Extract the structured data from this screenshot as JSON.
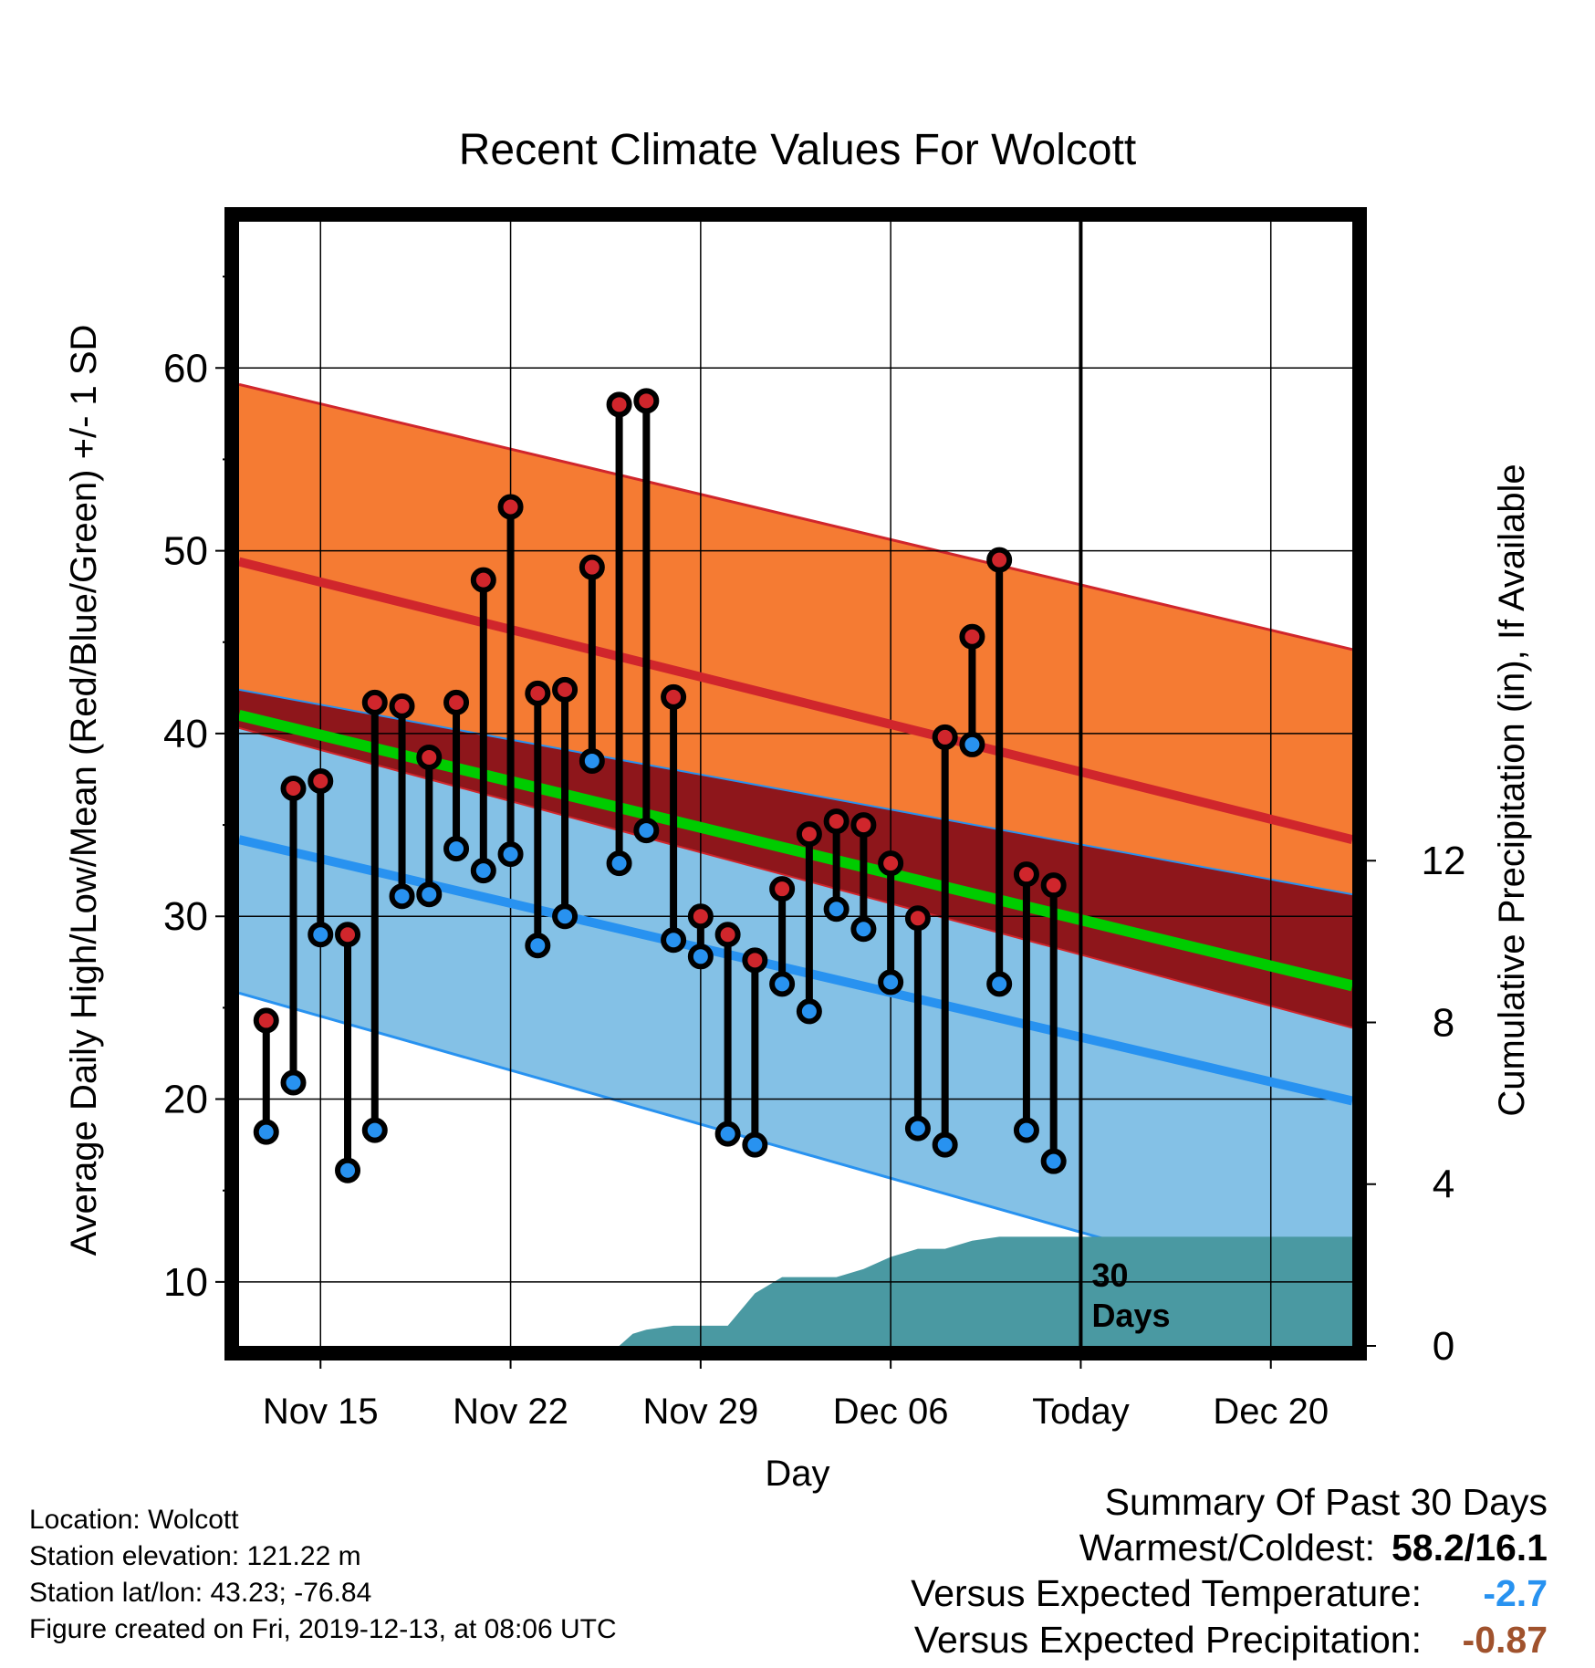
{
  "chart_data": {
    "type": "line",
    "title": "Recent Climate Values For Wolcott",
    "xlabel": "Day",
    "ylabel": "Average Daily High/Low/Mean (Red/Blue/Green) +/- 1 SD",
    "y2label": "Cumulative Precipitation (in), If Available",
    "x_tick_labels": [
      "Nov 15",
      "Nov 22",
      "Nov 29",
      "Dec 06",
      "Today",
      "Dec 20"
    ],
    "x_tick_days": [
      3,
      10,
      17,
      24,
      31,
      38
    ],
    "xlim": [
      0,
      41
    ],
    "ylim": [
      6.5,
      68
    ],
    "y_ticks": [
      10,
      20,
      30,
      40,
      50,
      60
    ],
    "y2lim": [
      0,
      27.8
    ],
    "y2_ticks": [
      0,
      4,
      8,
      12
    ],
    "grid": true,
    "today_day": 31,
    "today_label": "30 Days",
    "normals": {
      "day": [
        0,
        41
      ],
      "high_plus_sd": [
        59.1,
        44.6
      ],
      "high_mean": [
        49.4,
        34.2
      ],
      "high_minus_sd": [
        42.4,
        31.2
      ],
      "mean": [
        41.0,
        26.2
      ],
      "low_plus_sd": [
        40.3,
        23.9
      ],
      "low_mean": [
        34.2,
        19.9
      ],
      "low_minus_sd": [
        25.8,
        8.5
      ]
    },
    "series": [
      {
        "name": "High",
        "color": "#d0262c",
        "day": [
          1,
          2,
          3,
          4,
          5,
          6,
          7,
          8,
          9,
          10,
          11,
          12,
          13,
          14,
          15,
          16,
          17,
          18,
          19,
          20,
          21,
          22,
          23,
          24,
          25,
          26,
          27,
          28,
          29,
          30
        ],
        "values": [
          24.3,
          37.0,
          37.4,
          29.0,
          41.7,
          41.5,
          38.7,
          41.7,
          48.4,
          52.4,
          42.2,
          42.4,
          49.1,
          58.0,
          58.2,
          42.0,
          30.0,
          29.0,
          27.6,
          31.5,
          34.5,
          35.2,
          35.0,
          32.9,
          29.9,
          39.8,
          45.3,
          49.5,
          32.3,
          31.7
        ]
      },
      {
        "name": "Low",
        "color": "#2892f0",
        "day": [
          1,
          2,
          3,
          4,
          5,
          6,
          7,
          8,
          9,
          10,
          11,
          12,
          13,
          14,
          15,
          16,
          17,
          18,
          19,
          20,
          21,
          22,
          23,
          24,
          25,
          26,
          27,
          28,
          29,
          30
        ],
        "values": [
          18.2,
          20.9,
          29.0,
          16.1,
          18.3,
          31.1,
          31.2,
          33.7,
          32.5,
          33.4,
          28.4,
          30.0,
          38.5,
          32.9,
          34.7,
          28.7,
          27.8,
          18.1,
          17.5,
          26.3,
          24.8,
          30.4,
          29.3,
          26.4,
          18.4,
          17.5,
          39.4,
          26.3,
          18.3,
          16.6
        ]
      }
    ],
    "precipitation": {
      "name": "Cumulative Precipitation",
      "color": "#4a99a2",
      "day": [
        14,
        14.5,
        15,
        16,
        17,
        18,
        19,
        20,
        21,
        22,
        23,
        24,
        25,
        26,
        27,
        28,
        30,
        31,
        41
      ],
      "values": [
        0.0,
        0.3,
        0.4,
        0.5,
        0.5,
        0.5,
        1.3,
        1.7,
        1.7,
        1.7,
        1.9,
        2.2,
        2.4,
        2.4,
        2.6,
        2.7,
        2.7,
        2.7,
        2.7
      ]
    }
  },
  "footer": {
    "location": "Location: Wolcott",
    "elevation": "Station elevation: 121.22 m",
    "latlon": "Station lat/lon: 43.23; -76.84",
    "created": "Figure created on Fri, 2019-12-13, at 08:06 UTC"
  },
  "summary": {
    "heading": "Summary Of Past 30 Days",
    "warm_cold_label": "Warmest/Coldest:",
    "warm_cold_value": "58.2/16.1",
    "temp_label": "Versus Expected Temperature:",
    "temp_value": "-2.7",
    "temp_color": "#2892f0",
    "precip_label": "Versus Expected Precipitation:",
    "precip_value": "-0.87",
    "precip_color": "#a0522d"
  },
  "colors": {
    "high_band": "#f57b33",
    "mid_band": "#8e161b",
    "low_band": "#84c1e6",
    "high_line": "#d0262c",
    "low_line": "#2892f0",
    "mean_line": "#00cc00",
    "precip": "#4a99a2"
  }
}
